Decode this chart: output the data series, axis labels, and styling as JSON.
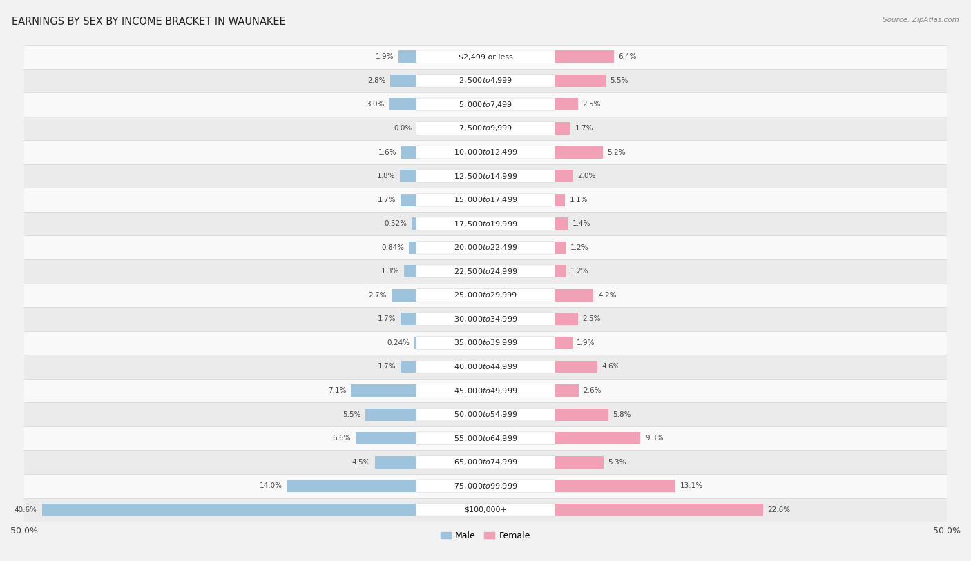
{
  "title": "EARNINGS BY SEX BY INCOME BRACKET IN WAUNAKEE",
  "source": "Source: ZipAtlas.com",
  "categories": [
    "$2,499 or less",
    "$2,500 to $4,999",
    "$5,000 to $7,499",
    "$7,500 to $9,999",
    "$10,000 to $12,499",
    "$12,500 to $14,999",
    "$15,000 to $17,499",
    "$17,500 to $19,999",
    "$20,000 to $22,499",
    "$22,500 to $24,999",
    "$25,000 to $29,999",
    "$30,000 to $34,999",
    "$35,000 to $39,999",
    "$40,000 to $44,999",
    "$45,000 to $49,999",
    "$50,000 to $54,999",
    "$55,000 to $64,999",
    "$65,000 to $74,999",
    "$75,000 to $99,999",
    "$100,000+"
  ],
  "male_values": [
    1.9,
    2.8,
    3.0,
    0.0,
    1.6,
    1.8,
    1.7,
    0.52,
    0.84,
    1.3,
    2.7,
    1.7,
    0.24,
    1.7,
    7.1,
    5.5,
    6.6,
    4.5,
    14.0,
    40.6
  ],
  "female_values": [
    6.4,
    5.5,
    2.5,
    1.7,
    5.2,
    2.0,
    1.1,
    1.4,
    1.2,
    1.2,
    4.2,
    2.5,
    1.9,
    4.6,
    2.6,
    5.8,
    9.3,
    5.3,
    13.1,
    22.6
  ],
  "male_label_values": [
    "1.9%",
    "2.8%",
    "3.0%",
    "0.0%",
    "1.6%",
    "1.8%",
    "1.7%",
    "0.52%",
    "0.84%",
    "1.3%",
    "2.7%",
    "1.7%",
    "0.24%",
    "1.7%",
    "7.1%",
    "5.5%",
    "6.6%",
    "4.5%",
    "14.0%",
    "40.6%"
  ],
  "female_label_values": [
    "6.4%",
    "5.5%",
    "2.5%",
    "1.7%",
    "5.2%",
    "2.0%",
    "1.1%",
    "1.4%",
    "1.2%",
    "1.2%",
    "4.2%",
    "2.5%",
    "1.9%",
    "4.6%",
    "2.6%",
    "5.8%",
    "9.3%",
    "5.3%",
    "13.1%",
    "22.6%"
  ],
  "male_color": "#9ec3dc",
  "female_color": "#f2a0b5",
  "male_label": "Male",
  "female_label": "Female",
  "axis_max": 50.0,
  "bar_height": 0.52,
  "label_pill_color": "#ffffff",
  "label_pill_border": "#dddddd",
  "bg_color": "#f2f2f2",
  "row_color_light": "#f9f9f9",
  "row_color_dark": "#ebebeb",
  "sep_color": "#d8d8d8",
  "title_fontsize": 10.5,
  "category_fontsize": 8.0,
  "value_fontsize": 7.5,
  "legend_fontsize": 9
}
